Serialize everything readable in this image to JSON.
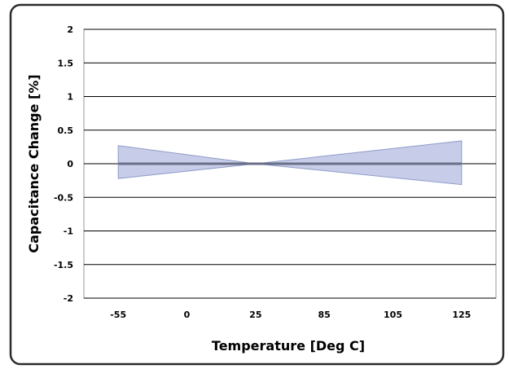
{
  "chart_data": {
    "type": "line",
    "xlabel": "Temperature [Deg C]",
    "ylabel": "Capacitance Change [%]",
    "categories": [
      "-55",
      "0",
      "25",
      "85",
      "105",
      "125"
    ],
    "ylim": [
      -2,
      2
    ],
    "yticks": [
      "2",
      "1.5",
      "1",
      "0.5",
      "0",
      "-0.5",
      "-1",
      "-1.5",
      "-2"
    ],
    "ytick_values": [
      2,
      1.5,
      1,
      0.5,
      0,
      -0.5,
      -1,
      -1.5,
      -2
    ],
    "grid": "horizontal",
    "band": {
      "x": [
        -55,
        25,
        125
      ],
      "upper": [
        0.27,
        0.0,
        0.34
      ],
      "lower": [
        -0.22,
        0.0,
        -0.31
      ]
    },
    "series": [
      {
        "x": [
          -55,
          25,
          125
        ],
        "values": [
          0,
          0,
          0
        ]
      }
    ],
    "colors": {
      "band_fill": "#c7cde8",
      "band_stroke": "#8e9cc9",
      "line": "#6b7089",
      "grid": "#000000",
      "frame": "#2b2b2b"
    }
  }
}
